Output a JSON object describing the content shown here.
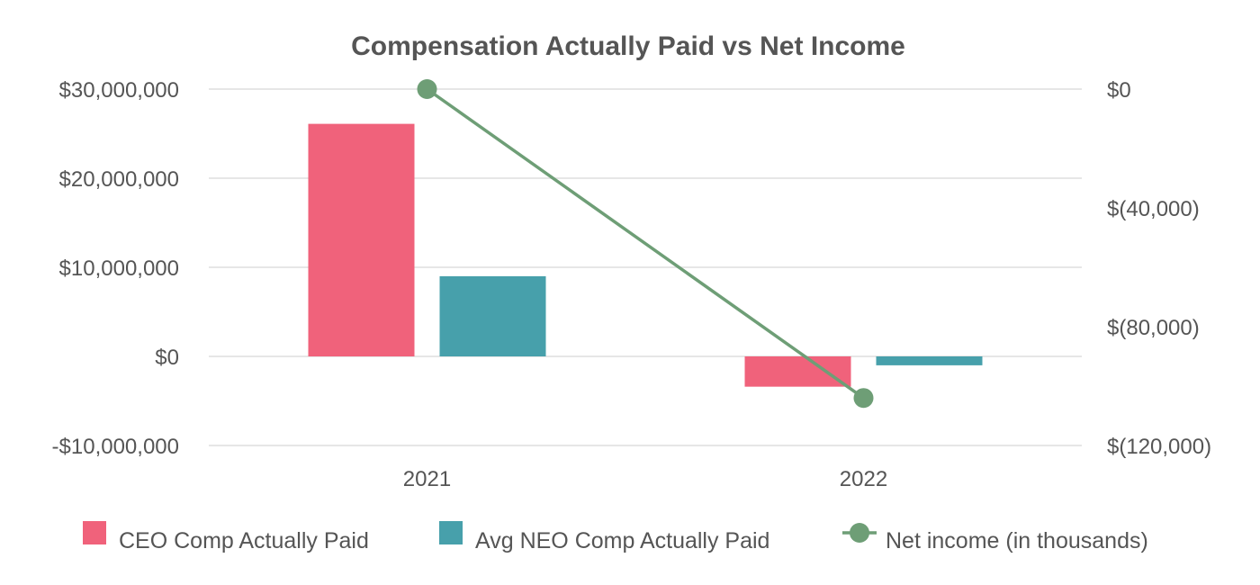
{
  "chart_data": {
    "type": "bar",
    "title": "Compensation Actually Paid vs Net Income",
    "categories": [
      "2021",
      "2022"
    ],
    "series": [
      {
        "name": "CEO Comp Actually Paid",
        "type": "bar",
        "axis": "left",
        "color": "#f0627b",
        "values": [
          26100000,
          -3400000
        ]
      },
      {
        "name": "Avg NEO Comp Actually Paid",
        "type": "bar",
        "axis": "left",
        "color": "#47a0ab",
        "values": [
          9000000,
          -1000000
        ]
      },
      {
        "name": "Net income (in thousands)",
        "type": "line",
        "axis": "right",
        "color": "#6e9e76",
        "values": [
          0,
          -104000
        ]
      }
    ],
    "y_left": {
      "range": [
        -10000000,
        30000000
      ],
      "ticks": [
        30000000,
        20000000,
        10000000,
        0,
        -10000000
      ],
      "tick_labels": [
        "$30,000,000",
        "$20,000,000",
        "$10,000,000",
        "$0",
        "-$10,000,000"
      ]
    },
    "y_right": {
      "range": [
        -120000,
        0
      ],
      "ticks": [
        0,
        -40000,
        -80000,
        -120000
      ],
      "tick_labels": [
        "$0",
        "$(40,000)",
        "$(80,000)",
        "$(120,000)"
      ]
    },
    "grid": true,
    "legend_position": "bottom"
  }
}
